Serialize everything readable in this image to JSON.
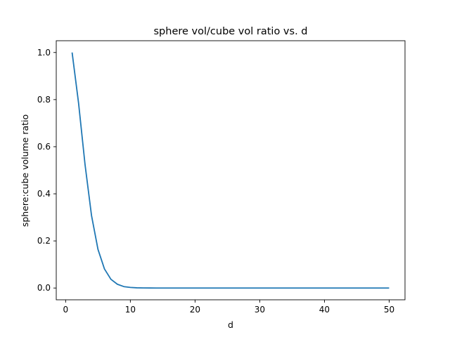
{
  "chart_data": {
    "type": "line",
    "title": "sphere vol/cube vol ratio vs. d",
    "xlabel": "d",
    "ylabel": "sphere:cube volume ratio",
    "xlim": [
      -1.45,
      52.45
    ],
    "ylim": [
      -0.05,
      1.05
    ],
    "xticks": [
      0,
      10,
      20,
      30,
      40,
      50
    ],
    "xtick_labels": [
      "0",
      "10",
      "20",
      "30",
      "40",
      "50"
    ],
    "yticks": [
      0.0,
      0.2,
      0.4,
      0.6,
      0.8,
      1.0
    ],
    "ytick_labels": [
      "0.0",
      "0.2",
      "0.4",
      "0.6",
      "0.8",
      "1.0"
    ],
    "grid": false,
    "series": [
      {
        "color": "#1f77b4",
        "x": [
          1,
          2,
          3,
          4,
          5,
          6,
          7,
          8,
          9,
          10,
          11,
          12,
          13,
          14,
          15,
          16,
          17,
          18,
          19,
          20,
          21,
          22,
          23,
          24,
          25,
          26,
          27,
          28,
          29,
          30,
          31,
          32,
          33,
          34,
          35,
          36,
          37,
          38,
          39,
          40,
          41,
          42,
          43,
          44,
          45,
          46,
          47,
          48,
          49,
          50
        ],
        "y": [
          1.0,
          0.785,
          0.524,
          0.308,
          0.164,
          0.081,
          0.037,
          0.016,
          0.006,
          0.0025,
          0.0009,
          0.0003,
          0.0001,
          3e-05,
          1e-05,
          0,
          0,
          0,
          0,
          0,
          0,
          0,
          0,
          0,
          0,
          0,
          0,
          0,
          0,
          0,
          0,
          0,
          0,
          0,
          0,
          0,
          0,
          0,
          0,
          0,
          0,
          0,
          0,
          0,
          0,
          0,
          0,
          0,
          0,
          0
        ]
      }
    ]
  }
}
